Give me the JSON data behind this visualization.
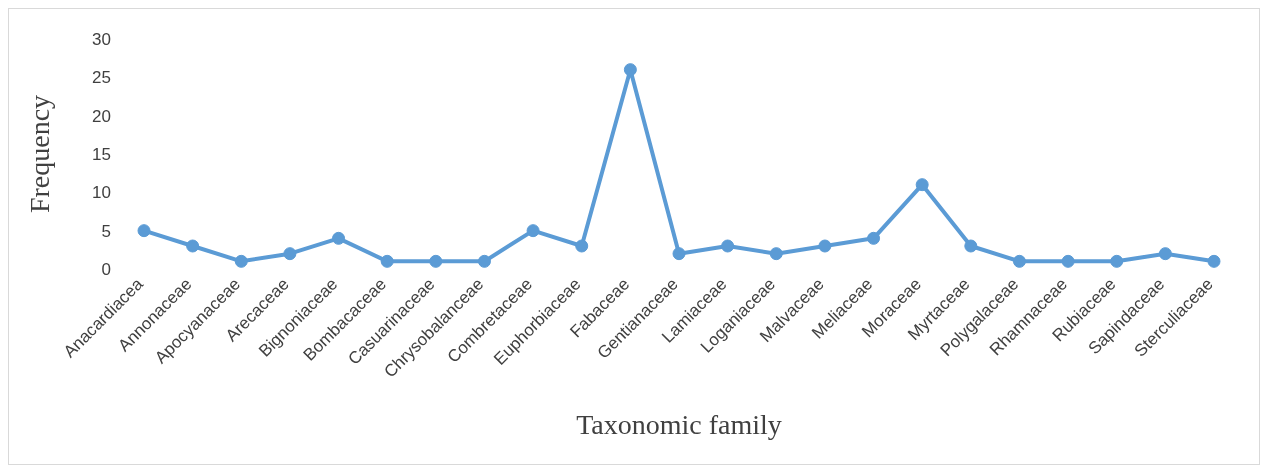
{
  "chart_data": {
    "type": "line",
    "xlabel": "Taxonomic family",
    "ylabel": "Frequency",
    "categories": [
      "Anacardiacea",
      "Annonaceae",
      "Apocyanaceae",
      "Arecaceae",
      "Bignoniaceae",
      "Bombacaceae",
      "Casuarinaceae",
      "Chrysobalanceae",
      "Combretaceae",
      "Euphorbiaceae",
      "Fabaceae",
      "Gentianaceae",
      "Lamiaceae",
      "Loganiaceae",
      "Malvaceae",
      "Meliaceae",
      "Moraceae",
      "Myrtaceae",
      "Polygalaceae",
      "Rhamnaceae",
      "Rubiaceae",
      "Sapindaceae",
      "Sterculiaceae"
    ],
    "series": [
      {
        "color": "#5b9bd5",
        "values": [
          5,
          3,
          1,
          2,
          4,
          1,
          1,
          1,
          5,
          3,
          26,
          2,
          3,
          2,
          3,
          4,
          11,
          3,
          1,
          1,
          1,
          2,
          1
        ]
      }
    ],
    "ylim": [
      0,
      30
    ],
    "yticks": [
      0,
      5,
      10,
      15,
      20,
      25,
      30
    ],
    "grid": false,
    "legend": false,
    "marker": "circle",
    "line_style": "solid"
  }
}
